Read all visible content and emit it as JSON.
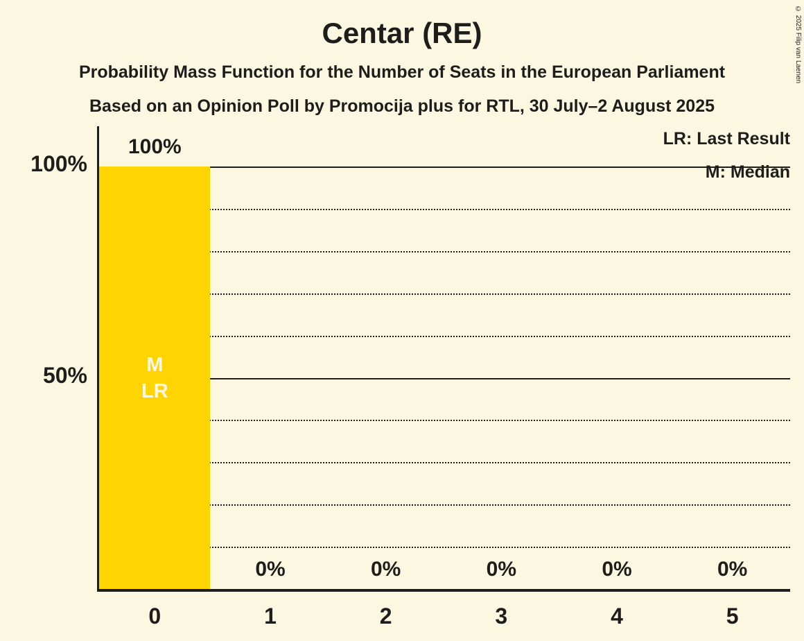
{
  "title": "Centar (RE)",
  "subtitle1": "Probability Mass Function for the Number of Seats in the European Parliament",
  "subtitle2": "Based on an Opinion Poll by Promocija plus for RTL, 30 July–2 August 2025",
  "legend": {
    "lr": "LR: Last Result",
    "m": "M: Median"
  },
  "copyright": "© 2025 Filip van Laenen",
  "colors": {
    "background": "#FBF7E1",
    "bar": "#FFD400",
    "text": "#1D1D1B",
    "bar_annotation_text": "#FBF7E1"
  },
  "chart_data": {
    "type": "bar",
    "title": "Centar (RE)",
    "xlabel": "",
    "ylabel": "",
    "categories": [
      "0",
      "1",
      "2",
      "3",
      "4",
      "5"
    ],
    "values": [
      100,
      0,
      0,
      0,
      0,
      0
    ],
    "value_labels": [
      "100%",
      "0%",
      "0%",
      "0%",
      "0%",
      "0%"
    ],
    "ylim": [
      0,
      100
    ],
    "yticks": [
      {
        "value": 100,
        "label": "100%"
      },
      {
        "value": 50,
        "label": "50%"
      }
    ],
    "gridlines": [
      {
        "value": 10,
        "style": "dotted"
      },
      {
        "value": 20,
        "style": "dotted"
      },
      {
        "value": 30,
        "style": "dotted"
      },
      {
        "value": 40,
        "style": "dotted"
      },
      {
        "value": 50,
        "style": "solid"
      },
      {
        "value": 60,
        "style": "dotted"
      },
      {
        "value": 70,
        "style": "dotted"
      },
      {
        "value": 80,
        "style": "dotted"
      },
      {
        "value": 90,
        "style": "dotted"
      },
      {
        "value": 100,
        "style": "solid"
      }
    ],
    "annotations": [
      {
        "index": 0,
        "lines": [
          "M",
          "LR"
        ]
      }
    ],
    "legend_entries": [
      "LR: Last Result",
      "M: Median"
    ],
    "legend_position": "top-right",
    "median_seats": "0",
    "last_result_seats": "0"
  }
}
